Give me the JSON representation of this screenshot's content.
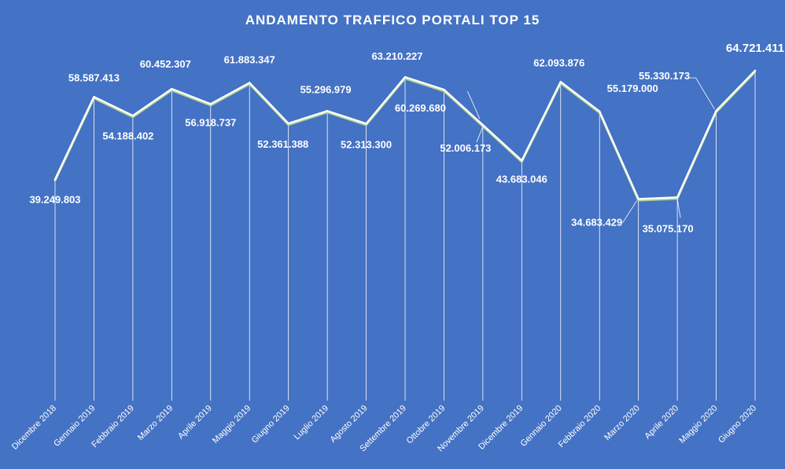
{
  "chart_data": {
    "type": "line",
    "title": "ANDAMENTO  TRAFFICO  PORTALI  TOP 15",
    "xlabel": "",
    "ylabel": "",
    "grid": false,
    "legend": "none",
    "categories": [
      "Dicembre 2018",
      "Gennaio 2019",
      "Febbraio 2019",
      "Marzo 2019",
      "Aprile 2019",
      "Maggio 2019",
      "Giugno 2019",
      "Luglio 2019",
      "Agosto 2019",
      "Settembre 2019",
      "Ottobre 2019",
      "Novembre 2019",
      "Dicembre 2019",
      "Gennaio 2020",
      "Febbraio 2020",
      "Marzo 2020",
      "Aprile 2020",
      "Maggio 2020",
      "Giugno 2020"
    ],
    "values": [
      39249803,
      58587413,
      54188402,
      60452307,
      56918737,
      61883347,
      52361388,
      55296979,
      52313300,
      63210227,
      60269680,
      52006173,
      43683046,
      62093876,
      55179000,
      34683429,
      35075170,
      55330173,
      64721411
    ],
    "data_labels": [
      "39.249.803",
      "58.587.413",
      "54.188.402",
      "60.452.307",
      "56.918.737",
      "61.883.347",
      "52.361.388",
      "55.296.979",
      "52.313.300",
      "63.210.227",
      "60.269.680",
      "52.006.173",
      "43.683.046",
      "62.093.876",
      "55.179.000",
      "34.683.429",
      "35.075.170",
      "55.330.173",
      "64.721.411"
    ],
    "colors": {
      "background": "#4472c4",
      "line": "#ffffff",
      "line_shadow": "#a9d18e",
      "text": "#ffffff"
    }
  }
}
